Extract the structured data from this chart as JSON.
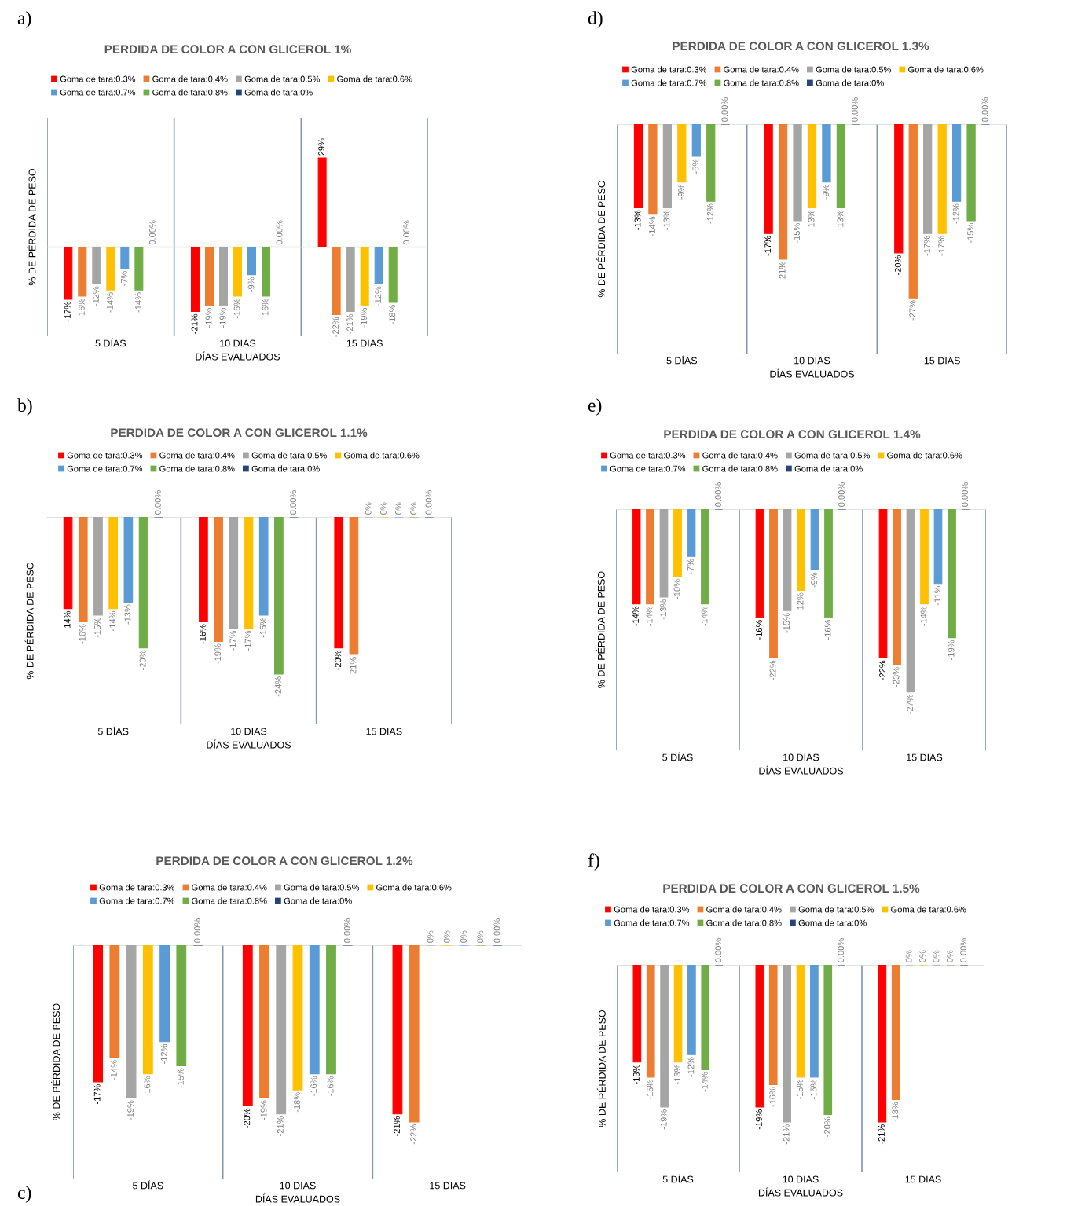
{
  "chart_data": [
    {
      "type": "bar",
      "title": "PERDIDA DE COLOR A CON GLICEROL 1%",
      "xlabel": "DÍAS EVALUADOS",
      "ylabel": "% DE PÉRDIDA DE PESO",
      "annotations": [
        "a)"
      ],
      "legend": "top",
      "grid": "x",
      "tick_labels": "x",
      "categories": [
        "5 DÍAS",
        "10 DIAS",
        "15 DIAS"
      ],
      "series": [
        {
          "name": "Goma de tara:0.3%",
          "color": "#ff0000",
          "values": [
            -17,
            -21,
            29
          ],
          "value_labels": [
            "-17%",
            "-21%",
            "29%"
          ]
        },
        {
          "name": "Goma de tara:0.4%",
          "color": "#ed7d31",
          "values": [
            -16,
            -19,
            -22
          ],
          "value_labels": [
            "-16%",
            "-19%",
            "-22%"
          ]
        },
        {
          "name": "Goma de tara:0.5%",
          "color": "#a5a5a5",
          "values": [
            -12,
            -19,
            -21
          ],
          "value_labels": [
            "-12%",
            "-19%",
            "-21%"
          ]
        },
        {
          "name": "Goma de tara:0.6%",
          "color": "#ffc000",
          "values": [
            -14,
            -16,
            -19
          ],
          "value_labels": [
            "-14%",
            "-16%",
            "-19%"
          ]
        },
        {
          "name": "Goma de tara:0.7%",
          "color": "#5b9bd5",
          "values": [
            -7,
            -9,
            -12
          ],
          "value_labels": [
            "-7%",
            "-9%",
            "-12%"
          ]
        },
        {
          "name": "Goma de tara:0.8%",
          "color": "#70ad47",
          "values": [
            -14,
            -16,
            -18
          ],
          "value_labels": [
            "-14%",
            "-16%",
            "-18%"
          ]
        },
        {
          "name": "Goma de tara:0%",
          "color": "#264478",
          "values": [
            0,
            0,
            0
          ],
          "value_labels": [
            "0.00%",
            "0.00%",
            "0.00%"
          ]
        }
      ]
    },
    {
      "type": "bar",
      "title": "PERDIDA DE COLOR A CON GLICEROL 1.1%",
      "xlabel": "DÍAS EVALUADOS",
      "ylabel": "% DE PÉRDIDA DE PESO",
      "annotations": [
        "b)"
      ],
      "legend": "top",
      "grid": "x",
      "tick_labels": "x",
      "categories": [
        "5 DÍAS",
        "10 DIAS",
        "15 DIAS"
      ],
      "series": [
        {
          "name": "Goma de tara:0.3%",
          "color": "#ff0000",
          "values": [
            -14,
            -16,
            -20
          ],
          "value_labels": [
            "-14%",
            "-16%",
            "-20%"
          ]
        },
        {
          "name": "Goma de tara:0.4%",
          "color": "#ed7d31",
          "values": [
            -16,
            -19,
            -21
          ],
          "value_labels": [
            "-16%",
            "-19%",
            "-21%"
          ]
        },
        {
          "name": "Goma de tara:0.5%",
          "color": "#a5a5a5",
          "values": [
            -15,
            -17,
            0
          ],
          "value_labels": [
            "-15%",
            "-17%",
            "0%"
          ]
        },
        {
          "name": "Goma de tara:0.6%",
          "color": "#ffc000",
          "values": [
            -14,
            -17,
            0
          ],
          "value_labels": [
            "-14%",
            "-17%",
            "0%"
          ]
        },
        {
          "name": "Goma de tara:0.7%",
          "color": "#5b9bd5",
          "values": [
            -13,
            -15,
            0
          ],
          "value_labels": [
            "-13%",
            "-15%",
            "0%"
          ]
        },
        {
          "name": "Goma de tara:0.8%",
          "color": "#70ad47",
          "values": [
            -20,
            -24,
            0
          ],
          "value_labels": [
            "-20%",
            "-24%",
            "0%"
          ]
        },
        {
          "name": "Goma de tara:0%",
          "color": "#264478",
          "values": [
            0,
            0,
            0
          ],
          "value_labels": [
            "0.00%",
            "0.00%",
            "0.00%"
          ]
        }
      ]
    },
    {
      "type": "bar",
      "title": "PERDIDA DE COLOR A CON GLICEROL 1.2%",
      "xlabel": "DÍAS EVALUADOS",
      "ylabel": "% DE PÉRDIDA DE PESO",
      "annotations": [
        "c)"
      ],
      "legend": "top",
      "grid": "x",
      "tick_labels": "x",
      "categories": [
        "5 DÍAS",
        "10 DIAS",
        "15 DIAS"
      ],
      "series": [
        {
          "name": "Goma de tara:0.3%",
          "color": "#ff0000",
          "values": [
            -17,
            -20,
            -21
          ],
          "value_labels": [
            "-17%",
            "-20%",
            "-21%"
          ]
        },
        {
          "name": "Goma de tara:0.4%",
          "color": "#ed7d31",
          "values": [
            -14,
            -19,
            -22
          ],
          "value_labels": [
            "-14%",
            "-19%",
            "-22%"
          ]
        },
        {
          "name": "Goma de tara:0.5%",
          "color": "#a5a5a5",
          "values": [
            -19,
            -21,
            0
          ],
          "value_labels": [
            "-19%",
            "-21%",
            "0%"
          ]
        },
        {
          "name": "Goma de tara:0.6%",
          "color": "#ffc000",
          "values": [
            -16,
            -18,
            0
          ],
          "value_labels": [
            "-16%",
            "-18%",
            "0%"
          ]
        },
        {
          "name": "Goma de tara:0.7%",
          "color": "#5b9bd5",
          "values": [
            -12,
            -16,
            0
          ],
          "value_labels": [
            "-12%",
            "-16%",
            "0%"
          ]
        },
        {
          "name": "Goma de tara:0.8%",
          "color": "#70ad47",
          "values": [
            -15,
            -16,
            0
          ],
          "value_labels": [
            "-15%",
            "-16%",
            "0%"
          ]
        },
        {
          "name": "Goma de tara:0%",
          "color": "#264478",
          "values": [
            0,
            0,
            0
          ],
          "value_labels": [
            "0.00%",
            "0.00%",
            "0.00%"
          ]
        }
      ]
    },
    {
      "type": "bar",
      "title": "PERDIDA DE COLOR A CON GLICEROL 1.3%",
      "xlabel": "DÍAS EVALUADOS",
      "ylabel": "% DE PÉRDIDA DE PESO",
      "annotations": [
        "d)"
      ],
      "legend": "top",
      "grid": "x",
      "tick_labels": "x",
      "categories": [
        "5 DÍAS",
        "10 DIAS",
        "15 DIAS"
      ],
      "series": [
        {
          "name": "Goma de tara:0.3%",
          "color": "#ff0000",
          "values": [
            -13,
            -17,
            -20
          ],
          "value_labels": [
            "-13%",
            "-17%",
            "-20%"
          ]
        },
        {
          "name": "Goma de tara:0.4%",
          "color": "#ed7d31",
          "values": [
            -14,
            -21,
            -27
          ],
          "value_labels": [
            "-14%",
            "-21%",
            "-27%"
          ]
        },
        {
          "name": "Goma de tara:0.5%",
          "color": "#a5a5a5",
          "values": [
            -13,
            -15,
            -17
          ],
          "value_labels": [
            "-13%",
            "-15%",
            "-17%"
          ]
        },
        {
          "name": "Goma de tara:0.6%",
          "color": "#ffc000",
          "values": [
            -9,
            -13,
            -17
          ],
          "value_labels": [
            "-9%",
            "-13%",
            "-17%"
          ]
        },
        {
          "name": "Goma de tara:0.7%",
          "color": "#5b9bd5",
          "values": [
            -5,
            -9,
            -12
          ],
          "value_labels": [
            "-5%",
            "-9%",
            "-12%"
          ]
        },
        {
          "name": "Goma de tara:0.8%",
          "color": "#70ad47",
          "values": [
            -12,
            -13,
            -15
          ],
          "value_labels": [
            "-12%",
            "-13%",
            "-15%"
          ]
        },
        {
          "name": "Goma de tara:0%",
          "color": "#264478",
          "values": [
            0,
            0,
            0
          ],
          "value_labels": [
            "0.00%",
            "0.00%",
            "0.00%"
          ]
        }
      ]
    },
    {
      "type": "bar",
      "title": "PERDIDA DE COLOR A CON GLICEROL 1.4%",
      "xlabel": "DÍAS EVALUADOS",
      "ylabel": "% DE PÉRDIDA DE PESO",
      "annotations": [
        "e)"
      ],
      "legend": "top",
      "grid": "x",
      "tick_labels": "x",
      "categories": [
        "5 DÍAS",
        "10 DIAS",
        "15 DIAS"
      ],
      "series": [
        {
          "name": "Goma de tara:0.3%",
          "color": "#ff0000",
          "values": [
            -14,
            -16,
            -22
          ],
          "value_labels": [
            "-14%",
            "-16%",
            "-22%"
          ]
        },
        {
          "name": "Goma de tara:0.4%",
          "color": "#ed7d31",
          "values": [
            -14,
            -22,
            -23
          ],
          "value_labels": [
            "-14%",
            "-22%",
            "-23%"
          ]
        },
        {
          "name": "Goma de tara:0.5%",
          "color": "#a5a5a5",
          "values": [
            -13,
            -15,
            -27
          ],
          "value_labels": [
            "-13%",
            "-15%",
            "-27%"
          ]
        },
        {
          "name": "Goma de tara:0.6%",
          "color": "#ffc000",
          "values": [
            -10,
            -12,
            -14
          ],
          "value_labels": [
            "-10%",
            "-12%",
            "-14%"
          ]
        },
        {
          "name": "Goma de tara:0.7%",
          "color": "#5b9bd5",
          "values": [
            -7,
            -9,
            -11
          ],
          "value_labels": [
            "-7%",
            "-9%",
            "-11%"
          ]
        },
        {
          "name": "Goma de tara:0.8%",
          "color": "#70ad47",
          "values": [
            -14,
            -16,
            -19
          ],
          "value_labels": [
            "-14%",
            "-16%",
            "-19%"
          ]
        },
        {
          "name": "Goma de tara:0%",
          "color": "#264478",
          "values": [
            0,
            0,
            0
          ],
          "value_labels": [
            "0.00%",
            "0.00%",
            "0.00%"
          ]
        }
      ]
    },
    {
      "type": "bar",
      "title": "PERDIDA DE COLOR A CON GLICEROL 1.5%",
      "xlabel": "DÍAS EVALUADOS",
      "ylabel": "% DE PÉRDIDA DE PESO",
      "annotations": [
        "f)"
      ],
      "legend": "top",
      "grid": "x",
      "tick_labels": "x",
      "categories": [
        "5 DÍAS",
        "10 DIAS",
        "15 DIAS"
      ],
      "series": [
        {
          "name": "Goma de tara:0.3%",
          "color": "#ff0000",
          "values": [
            -13,
            -19,
            -21
          ],
          "value_labels": [
            "-13%",
            "-19%",
            "-21%"
          ]
        },
        {
          "name": "Goma de tara:0.4%",
          "color": "#ed7d31",
          "values": [
            -15,
            -16,
            -18
          ],
          "value_labels": [
            "-15%",
            "-16%",
            "-18%"
          ]
        },
        {
          "name": "Goma de tara:0.5%",
          "color": "#a5a5a5",
          "values": [
            -19,
            -21,
            0
          ],
          "value_labels": [
            "-19%",
            "-21%",
            "0%"
          ]
        },
        {
          "name": "Goma de tara:0.6%",
          "color": "#ffc000",
          "values": [
            -13,
            -15,
            0
          ],
          "value_labels": [
            "-13%",
            "-15%",
            "0%"
          ]
        },
        {
          "name": "Goma de tara:0.7%",
          "color": "#5b9bd5",
          "values": [
            -12,
            -15,
            0
          ],
          "value_labels": [
            "-12%",
            "-15%",
            "0%"
          ]
        },
        {
          "name": "Goma de tara:0.8%",
          "color": "#70ad47",
          "values": [
            -14,
            -20,
            0
          ],
          "value_labels": [
            "-14%",
            "-20%",
            "0%"
          ]
        },
        {
          "name": "Goma de tara:0%",
          "color": "#264478",
          "values": [
            0,
            0,
            0
          ],
          "value_labels": [
            "0.00%",
            "0.00%",
            "0.00%"
          ]
        }
      ]
    }
  ]
}
